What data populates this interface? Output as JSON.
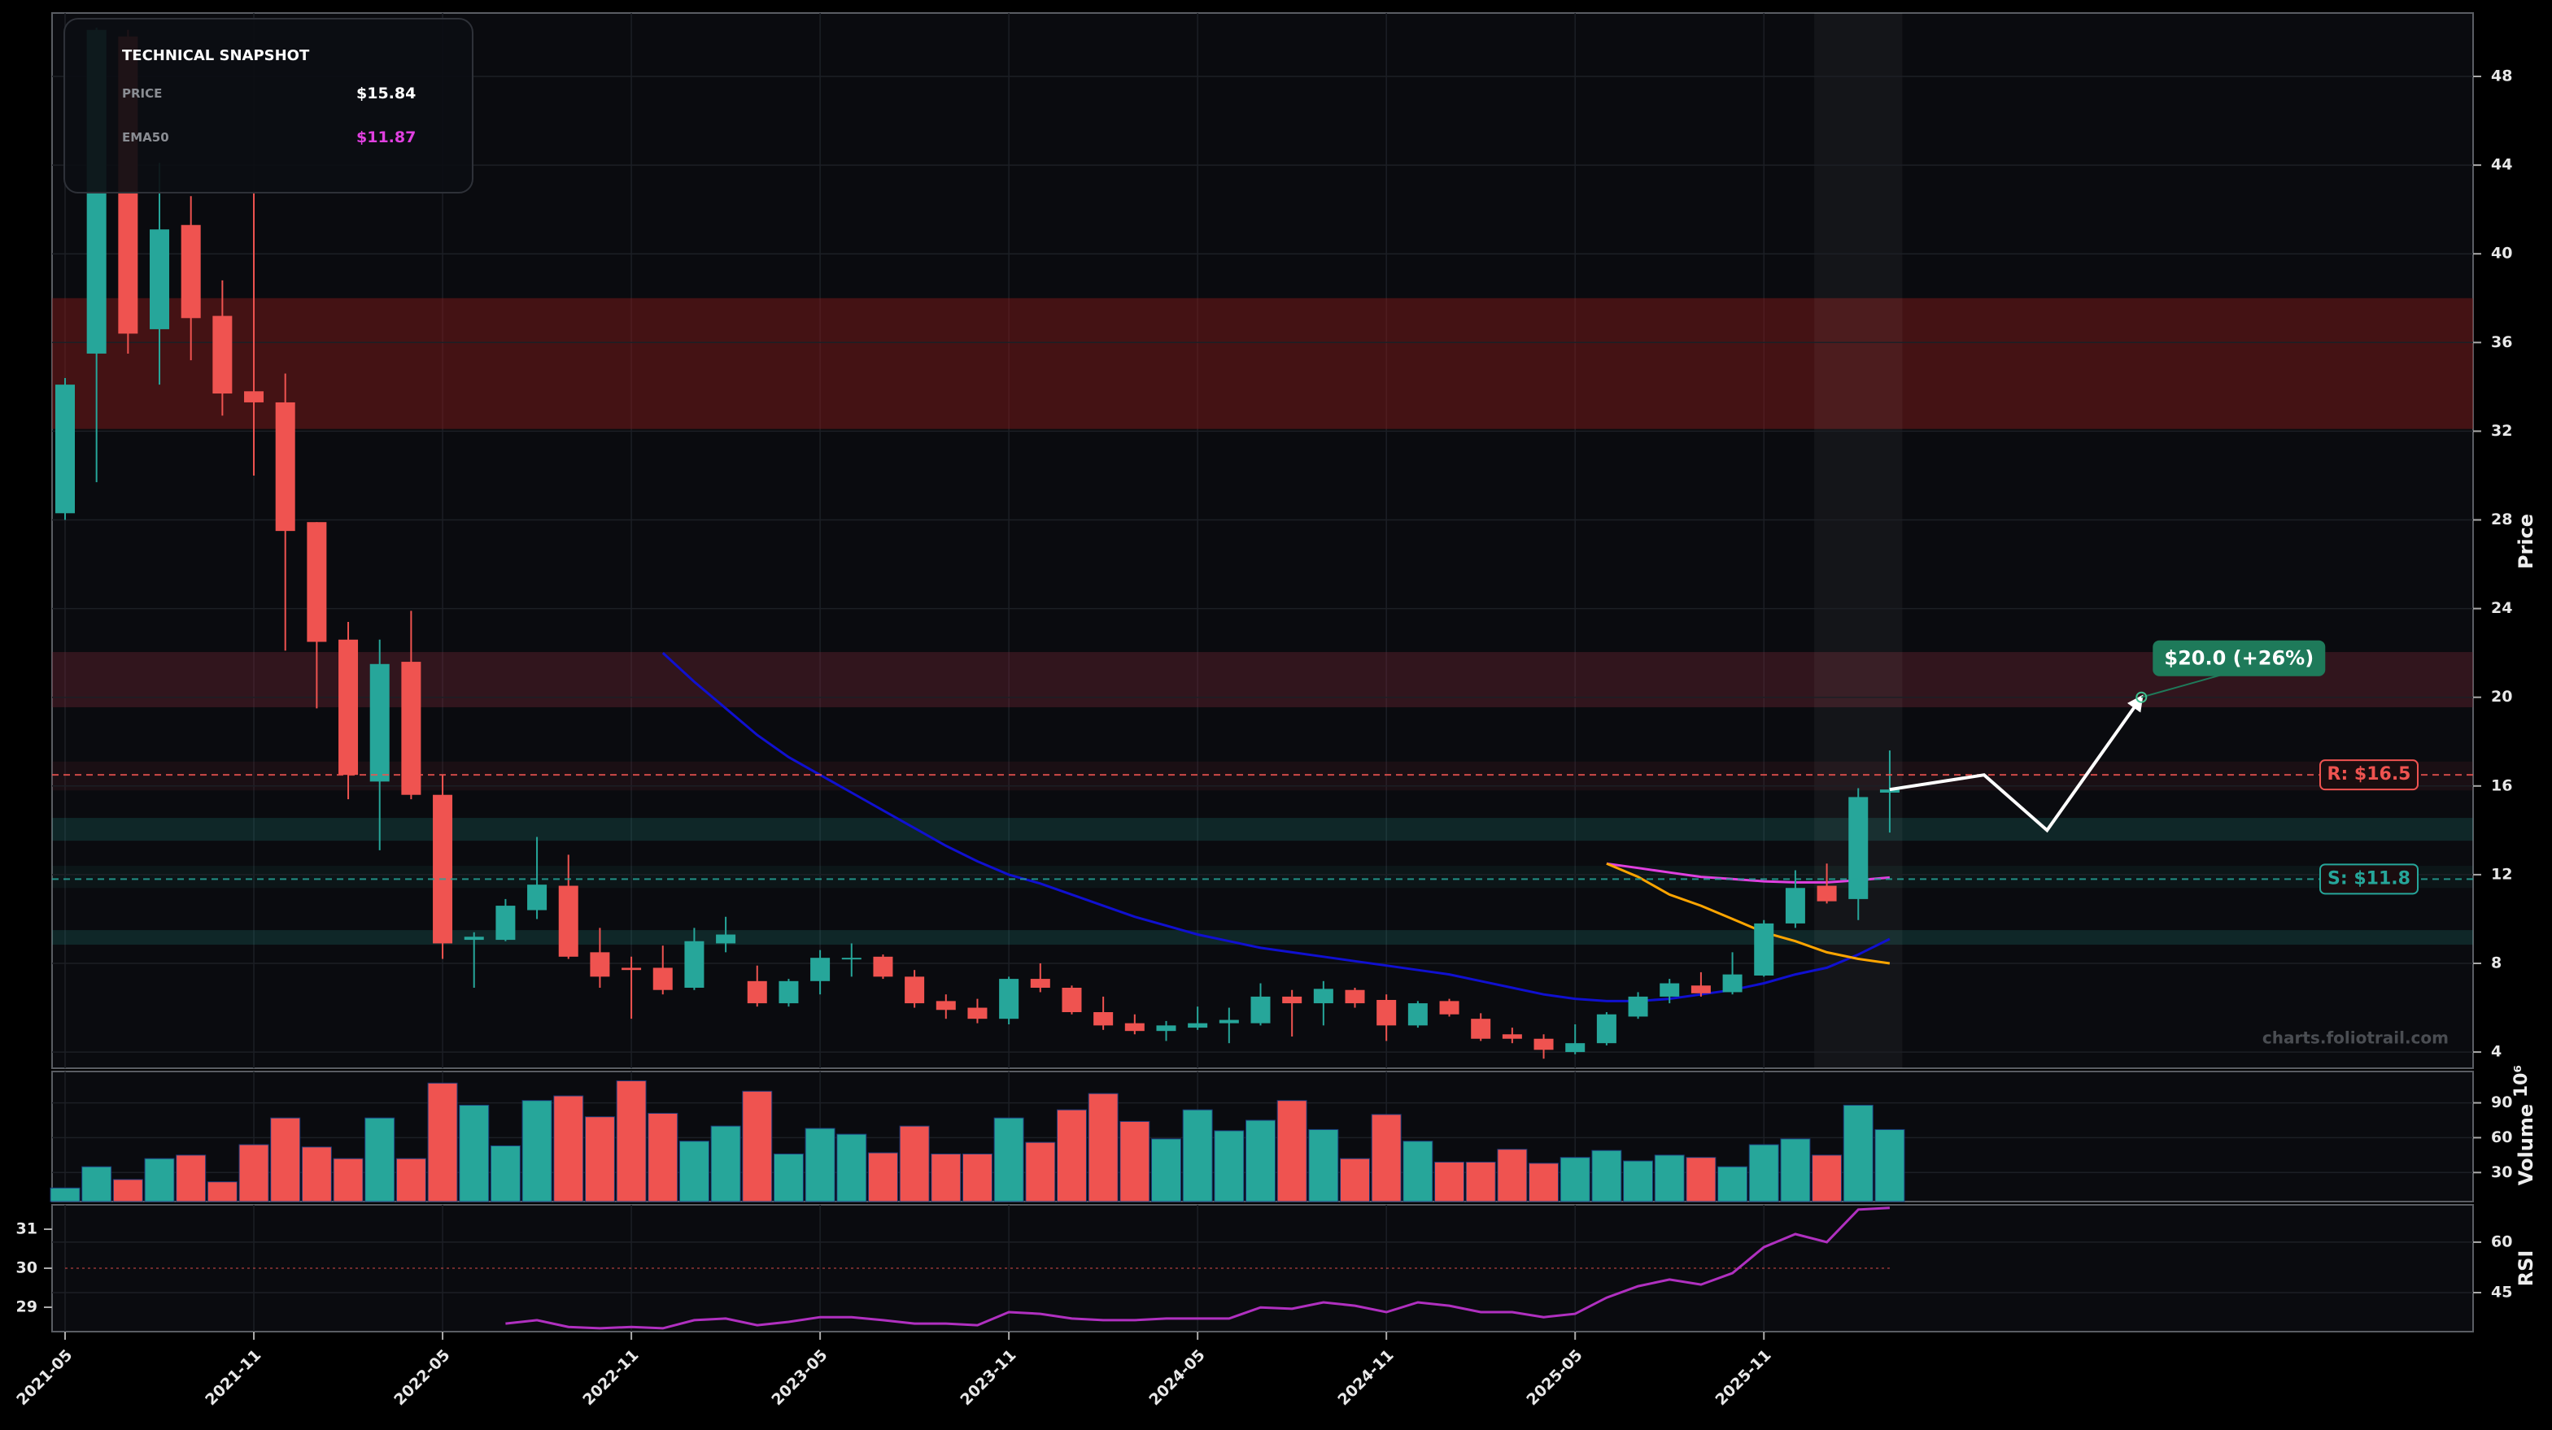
{
  "snapshot": {
    "title": "TECHNICAL SNAPSHOT",
    "rows": [
      {
        "label": "PRICE",
        "value": "$15.84"
      },
      {
        "label": "EMA50",
        "value": "$11.87"
      }
    ]
  },
  "watermark": "charts.foliotrail.com",
  "chart_data": [
    {
      "type": "candlestick",
      "y_label": "Price",
      "x": [
        "2021-05",
        "2021-06",
        "2021-07",
        "2021-08",
        "2021-09",
        "2021-10",
        "2021-11",
        "2021-12",
        "2022-01",
        "2022-02",
        "2022-03",
        "2022-04",
        "2022-05",
        "2022-06",
        "2022-07",
        "2022-08",
        "2022-09",
        "2022-10",
        "2022-11",
        "2022-12",
        "2023-01",
        "2023-02",
        "2023-03",
        "2023-04",
        "2023-05",
        "2023-06",
        "2023-07",
        "2023-08",
        "2023-09",
        "2023-10",
        "2023-11",
        "2023-12",
        "2024-01",
        "2024-02",
        "2024-03",
        "2024-04",
        "2024-05",
        "2024-06",
        "2024-07",
        "2024-08",
        "2024-09",
        "2024-10",
        "2024-11",
        "2024-12",
        "2025-01",
        "2025-02",
        "2025-03",
        "2025-04",
        "2025-05",
        "2025-06",
        "2025-07",
        "2025-08",
        "2025-09",
        "2025-10",
        "2025-11",
        "2025-12",
        "2026-01",
        "2026-02",
        "2026-03"
      ],
      "open": [
        28.3,
        35.5,
        49.8,
        36.6,
        41.3,
        37.2,
        33.8,
        33.3,
        27.9,
        22.6,
        16.2,
        21.6,
        15.6,
        9.06,
        9.06,
        10.4,
        11.5,
        8.5,
        7.8,
        7.8,
        6.9,
        8.9,
        7.2,
        6.2,
        7.2,
        8.2,
        8.3,
        7.4,
        6.3,
        6.0,
        5.5,
        7.3,
        6.9,
        5.8,
        5.3,
        4.95,
        5.1,
        5.3,
        5.3,
        6.5,
        6.2,
        6.8,
        6.35,
        5.2,
        6.3,
        5.5,
        4.8,
        4.6,
        4.0,
        4.4,
        5.6,
        6.5,
        7.0,
        6.7,
        7.45,
        9.8,
        11.5,
        10.9,
        15.7
      ],
      "high": [
        34.4,
        50.2,
        50.1,
        44.1,
        42.6,
        38.8,
        42.8,
        34.6,
        27.9,
        23.4,
        22.6,
        23.9,
        16.5,
        9.4,
        10.9,
        13.7,
        12.9,
        9.6,
        8.3,
        8.8,
        9.6,
        10.1,
        7.9,
        7.3,
        8.6,
        8.9,
        8.4,
        7.7,
        6.6,
        6.4,
        7.4,
        8.0,
        7.0,
        6.5,
        5.7,
        5.4,
        6.05,
        6.0,
        7.1,
        6.8,
        7.2,
        6.9,
        6.6,
        6.3,
        6.4,
        5.75,
        5.1,
        4.8,
        5.25,
        5.8,
        6.7,
        7.3,
        7.6,
        8.5,
        9.95,
        12.2,
        12.5,
        15.9,
        17.6
      ],
      "low": [
        28.0,
        29.7,
        35.5,
        34.1,
        35.2,
        32.7,
        30.0,
        22.1,
        19.5,
        15.4,
        13.1,
        15.4,
        8.2,
        6.9,
        9.0,
        10.0,
        8.2,
        6.9,
        5.5,
        6.6,
        6.8,
        8.5,
        6.05,
        6.05,
        6.6,
        7.4,
        7.3,
        6.0,
        5.5,
        5.3,
        5.25,
        6.7,
        5.7,
        5.0,
        4.8,
        4.5,
        5.0,
        4.4,
        5.2,
        4.7,
        5.2,
        6.0,
        4.5,
        5.1,
        5.6,
        4.5,
        4.4,
        3.7,
        3.9,
        4.3,
        5.5,
        6.2,
        6.5,
        6.6,
        7.4,
        9.6,
        10.7,
        9.95,
        13.9
      ],
      "close": [
        34.1,
        50.1,
        36.4,
        41.1,
        37.1,
        33.7,
        33.3,
        27.5,
        22.5,
        16.5,
        21.5,
        15.6,
        8.9,
        9.2,
        10.6,
        11.55,
        8.3,
        7.4,
        7.7,
        6.8,
        9.0,
        9.3,
        6.2,
        7.2,
        8.25,
        8.25,
        7.4,
        6.2,
        5.9,
        5.5,
        7.3,
        6.9,
        5.8,
        5.2,
        4.95,
        5.2,
        5.3,
        5.45,
        6.5,
        6.2,
        6.85,
        6.2,
        5.2,
        6.2,
        5.7,
        4.6,
        4.6,
        4.1,
        4.4,
        5.7,
        6.5,
        7.1,
        6.65,
        7.5,
        9.8,
        11.4,
        10.8,
        15.5,
        15.84
      ],
      "up_color": "#26a69a",
      "down_color": "#ef5350",
      "xlim": [
        "2021-05",
        "2027-09"
      ],
      "xticks": [
        "2021-05",
        "2021-11",
        "2022-05",
        "2022-11",
        "2023-05",
        "2023-11",
        "2024-05",
        "2024-11",
        "2025-05",
        "2025-11"
      ],
      "ylim": [
        3.27,
        50.86
      ],
      "yticks": [
        4,
        8,
        12,
        16,
        20,
        24,
        28,
        32,
        36,
        40,
        44,
        48
      ],
      "grid": true,
      "lines": [
        {
          "color": "#1010d0",
          "values": [
            null,
            null,
            null,
            null,
            null,
            null,
            null,
            null,
            null,
            null,
            null,
            null,
            null,
            null,
            null,
            null,
            null,
            null,
            null,
            22.0,
            20.7,
            19.5,
            18.3,
            17.3,
            16.5,
            15.7,
            14.9,
            14.1,
            13.3,
            12.6,
            12.0,
            11.6,
            11.1,
            10.6,
            10.1,
            9.7,
            9.3,
            9.0,
            8.7,
            8.5,
            8.3,
            8.1,
            7.9,
            7.7,
            7.5,
            7.2,
            6.9,
            6.6,
            6.4,
            6.3,
            6.3,
            6.4,
            6.6,
            6.8,
            7.1,
            7.5,
            7.8,
            8.4,
            9.1
          ]
        },
        {
          "color": "#e040e0",
          "values": [
            null,
            null,
            null,
            null,
            null,
            null,
            null,
            null,
            null,
            null,
            null,
            null,
            null,
            null,
            null,
            null,
            null,
            null,
            null,
            null,
            null,
            null,
            null,
            null,
            null,
            null,
            null,
            null,
            null,
            null,
            null,
            null,
            null,
            null,
            null,
            null,
            null,
            null,
            null,
            null,
            null,
            null,
            null,
            null,
            null,
            null,
            null,
            null,
            null,
            12.5,
            12.3,
            12.1,
            11.9,
            11.8,
            11.7,
            11.65,
            11.65,
            11.75,
            11.87
          ]
        },
        {
          "color": "#ffa500",
          "values": [
            null,
            null,
            null,
            null,
            null,
            null,
            null,
            null,
            null,
            null,
            null,
            null,
            null,
            null,
            null,
            null,
            null,
            null,
            null,
            null,
            null,
            null,
            null,
            null,
            null,
            null,
            null,
            null,
            null,
            null,
            null,
            null,
            null,
            null,
            null,
            null,
            null,
            null,
            null,
            null,
            null,
            null,
            null,
            null,
            null,
            null,
            null,
            null,
            null,
            12.5,
            11.9,
            11.1,
            10.6,
            10.0,
            9.4,
            9.0,
            8.5,
            8.2,
            8.0
          ]
        }
      ],
      "zones": [
        {
          "from": 32.1,
          "to": 38.0,
          "color": "#8b1a1a",
          "opacity": 0.45
        },
        {
          "from": 19.55,
          "to": 22.04,
          "color": "#7a2838",
          "opacity": 0.35
        },
        {
          "from": 15.8,
          "to": 17.1,
          "color": "#7a2838",
          "opacity": 0.15
        },
        {
          "from": 13.53,
          "to": 14.56,
          "color": "#26a69a",
          "opacity": 0.18
        },
        {
          "from": 11.4,
          "to": 12.4,
          "color": "#26a69a",
          "opacity": 0.07
        },
        {
          "from": 8.84,
          "to": 9.5,
          "color": "#26a69a",
          "opacity": 0.18
        }
      ],
      "highlight": [
        "2026-01",
        "2026-03"
      ],
      "levels": [
        {
          "label": "R: $16.5",
          "value": 16.5,
          "color": "#ef5350"
        },
        {
          "label": "S: $11.8",
          "value": 11.8,
          "color": "#26a69a"
        }
      ],
      "projection": {
        "x": [
          "2026-03",
          "2026-06",
          "2026-08",
          "2026-11"
        ],
        "values": [
          15.84,
          16.5,
          14.0,
          20.0
        ],
        "color": "#ffffff"
      },
      "target": {
        "label": "$20.0 (+26%)",
        "x": "2026-11",
        "value": 20.0,
        "color": "#1e7a5a"
      }
    },
    {
      "type": "bar",
      "y_label": "Volume",
      "y_unit": "10⁶",
      "values": [
        16.7,
        35,
        24,
        42,
        45,
        22,
        54,
        77,
        52,
        42,
        77,
        42,
        107,
        88,
        53,
        92,
        96,
        78,
        109,
        81,
        57,
        70,
        100,
        46,
        68,
        63,
        47,
        70,
        46,
        46,
        77,
        56,
        84,
        98,
        74,
        59,
        84,
        66,
        75,
        92,
        67,
        42,
        80,
        57,
        39,
        39,
        50,
        38,
        43,
        49,
        40,
        45,
        43,
        35,
        54,
        59,
        45,
        88,
        67
      ],
      "ylim": [
        5,
        117
      ],
      "yticks": [
        30,
        60,
        90
      ]
    },
    {
      "type": "line",
      "y_label": "RSI",
      "ylim": [
        28.375,
        31.625
      ],
      "yticks": [
        29,
        30,
        31
      ],
      "y2lim": [
        33.4,
        71.1
      ],
      "y2ticks": [
        45,
        60
      ],
      "threshold": 30,
      "threshold_color": "#ef5350",
      "series": [
        {
          "color": "#b030c0",
          "axis": "y2",
          "values": [
            null,
            null,
            null,
            null,
            null,
            null,
            null,
            null,
            null,
            null,
            null,
            null,
            null,
            null,
            35.8,
            36.8,
            34.8,
            34.4,
            34.8,
            34.4,
            36.8,
            37.3,
            35.3,
            36.3,
            37.7,
            37.7,
            36.8,
            35.8,
            35.8,
            35.3,
            39.2,
            38.7,
            37.3,
            36.8,
            36.8,
            37.3,
            37.3,
            37.3,
            40.6,
            40.2,
            42.1,
            41.1,
            39.2,
            42.1,
            41.1,
            39.2,
            39.2,
            37.7,
            38.7,
            43.5,
            46.9,
            48.9,
            47.4,
            50.8,
            58.5,
            62.4,
            60.0,
            69.7,
            70.2
          ]
        }
      ]
    }
  ]
}
